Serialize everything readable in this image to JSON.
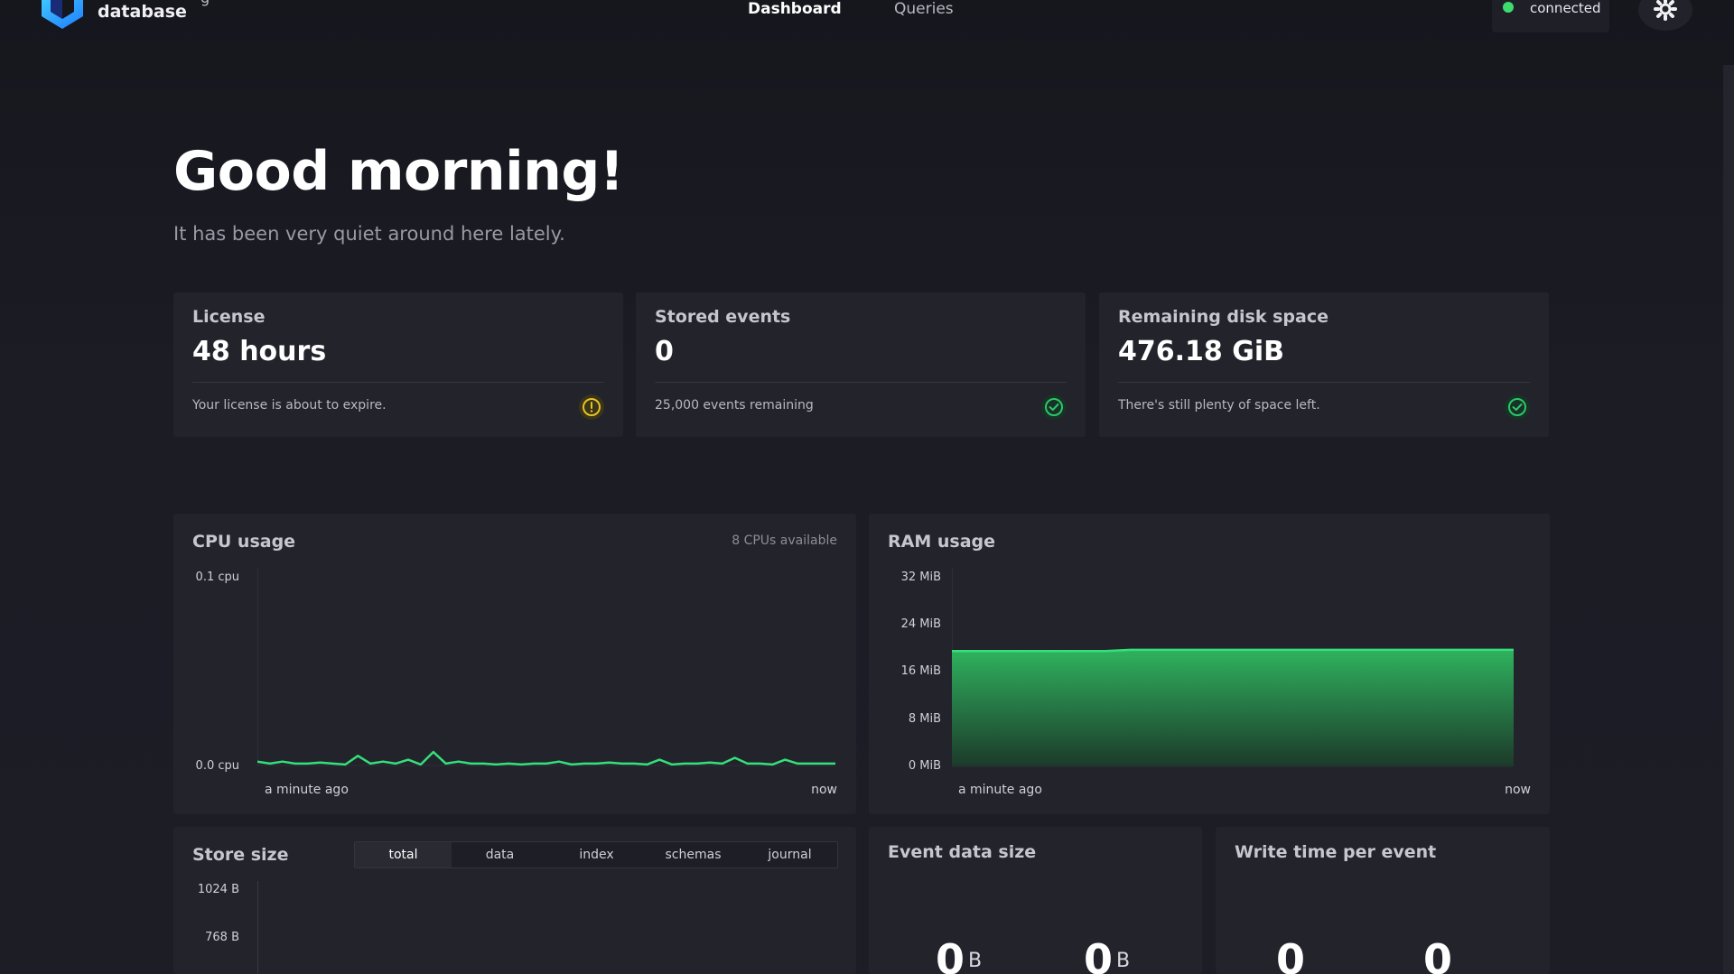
{
  "header": {
    "brand": "database",
    "brand_partial": "g",
    "nav": {
      "dashboard": "Dashboard",
      "queries": "Queries"
    },
    "connection_status": "connected",
    "colors": {
      "connected": "#3ddc6e",
      "accent": "#1e90ff"
    }
  },
  "main": {
    "greeting": "Good morning!",
    "subtitle": "It has been very quiet around here lately."
  },
  "stats": [
    {
      "title": "License",
      "value": "48 hours",
      "note": "Your license is about to expire.",
      "icon": "warning-icon",
      "color": "#e6c229"
    },
    {
      "title": "Stored events",
      "value": "0",
      "note": "25,000 events remaining",
      "icon": "check-circle-icon",
      "color": "#2fc66b"
    },
    {
      "title": "Remaining disk space",
      "value": "476.18 GiB",
      "note": "There's still plenty of space left.",
      "icon": "check-circle-icon",
      "color": "#2fc66b"
    }
  ],
  "cpu": {
    "title": "CPU usage",
    "aside": "8 CPUs available",
    "x_start": "a minute ago",
    "x_end": "now"
  },
  "ram": {
    "title": "RAM usage",
    "x_start": "a minute ago",
    "x_end": "now"
  },
  "store": {
    "title": "Store size",
    "tabs": [
      "total",
      "data",
      "index",
      "schemas",
      "journal"
    ],
    "active_tab": "total"
  },
  "event_data_size": {
    "title": "Event data size",
    "digits": [
      "0",
      "0"
    ],
    "units": [
      "B",
      "B"
    ]
  },
  "write_time": {
    "title": "Write time per event",
    "digits": [
      "0",
      "0"
    ]
  },
  "chart_data": [
    {
      "type": "line",
      "title": "CPU usage",
      "ylabel": "",
      "y_ticks": [
        "0.1 cpu",
        "0.0 cpu"
      ],
      "ylim": [
        0,
        0.1
      ],
      "x_ticks": [
        "a minute ago",
        "now"
      ],
      "color": "#33e07a",
      "values": [
        0.002,
        0.001,
        0.002,
        0.001,
        0.001,
        0.0015,
        0.001,
        0.0005,
        0.005,
        0.001,
        0.002,
        0.001,
        0.003,
        0.0005,
        0.007,
        0.001,
        0.002,
        0.001,
        0.001,
        0.0005,
        0.001,
        0.0005,
        0.001,
        0.001,
        0.002,
        0.0005,
        0.001,
        0.001,
        0.0015,
        0.001,
        0.001,
        0.0005,
        0.003,
        0.0005,
        0.001,
        0.001,
        0.0015,
        0.001,
        0.004,
        0.001,
        0.001,
        0.0005,
        0.003,
        0.001,
        0.001,
        0.001,
        0.001
      ]
    },
    {
      "type": "area",
      "title": "RAM usage",
      "y_ticks": [
        "32 MiB",
        "24 MiB",
        "16 MiB",
        "8 MiB",
        "0 MiB"
      ],
      "ylim": [
        0,
        32
      ],
      "x_ticks": [
        "a minute ago",
        "now"
      ],
      "color": "#33e07a",
      "values": [
        19.2,
        19.2,
        19.2,
        19.2,
        19.2,
        19.2,
        19.2,
        19.4,
        19.4,
        19.4,
        19.4,
        19.4,
        19.4,
        19.4,
        19.4,
        19.4,
        19.4,
        19.4,
        19.4,
        19.4,
        19.4,
        19.4,
        19.4
      ]
    },
    {
      "type": "line",
      "title": "Store size",
      "y_ticks": [
        "1024 B",
        "768 B"
      ],
      "ylim": [
        0,
        1024
      ],
      "values": []
    }
  ]
}
